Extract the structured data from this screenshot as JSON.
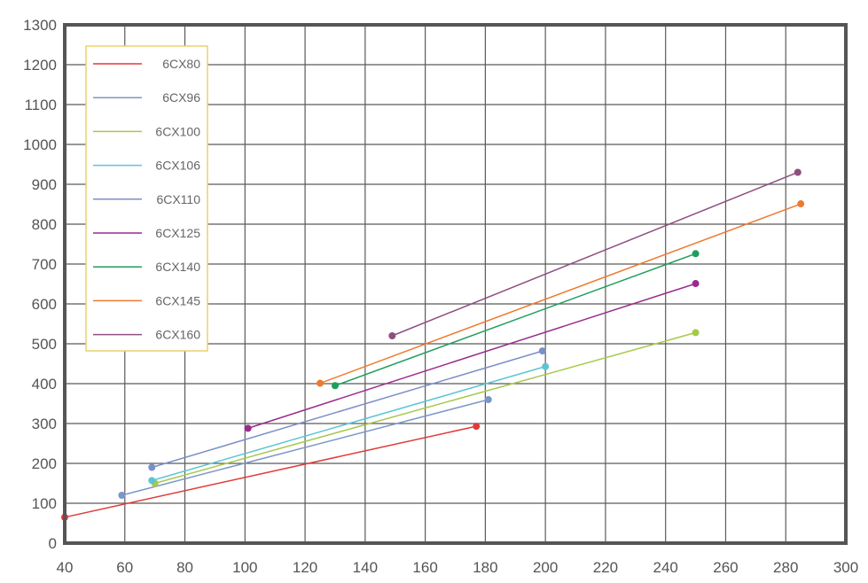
{
  "chart_data": {
    "type": "line",
    "title": "",
    "xlabel": "",
    "ylabel": "",
    "xlim": [
      40,
      300
    ],
    "ylim": [
      0,
      1300
    ],
    "x_ticks": [
      40,
      60,
      80,
      100,
      120,
      140,
      160,
      180,
      200,
      220,
      240,
      260,
      280,
      300
    ],
    "y_ticks": [
      0,
      100,
      200,
      300,
      400,
      500,
      600,
      700,
      800,
      900,
      1000,
      1100,
      1200,
      1300
    ],
    "grid": true,
    "legend_position": "top-left",
    "series": [
      {
        "name": "6CX80",
        "color": "#e03a3a",
        "points": [
          [
            40,
            65
          ],
          [
            177,
            293
          ]
        ]
      },
      {
        "name": "6CX96",
        "color": "#7b97c8",
        "points": [
          [
            59,
            120
          ],
          [
            181,
            360
          ]
        ]
      },
      {
        "name": "6CX100",
        "color": "#a6c94a",
        "points": [
          [
            70,
            150
          ],
          [
            250,
            528
          ]
        ]
      },
      {
        "name": "6CX106",
        "color": "#5cc5d2",
        "points": [
          [
            69,
            157
          ],
          [
            200,
            443
          ]
        ]
      },
      {
        "name": "6CX110",
        "color": "#7b8fc8",
        "points": [
          [
            69,
            190
          ],
          [
            199,
            482
          ]
        ]
      },
      {
        "name": "6CX125",
        "color": "#9b2a8e",
        "points": [
          [
            101,
            288
          ],
          [
            250,
            651
          ]
        ]
      },
      {
        "name": "6CX140",
        "color": "#1e9e5e",
        "points": [
          [
            130,
            395
          ],
          [
            250,
            726
          ]
        ]
      },
      {
        "name": "6CX145",
        "color": "#ee7a30",
        "points": [
          [
            125,
            401
          ],
          [
            285,
            851
          ]
        ]
      },
      {
        "name": "6CX160",
        "color": "#8e4f80",
        "points": [
          [
            149,
            520
          ],
          [
            284,
            930
          ]
        ]
      }
    ]
  }
}
